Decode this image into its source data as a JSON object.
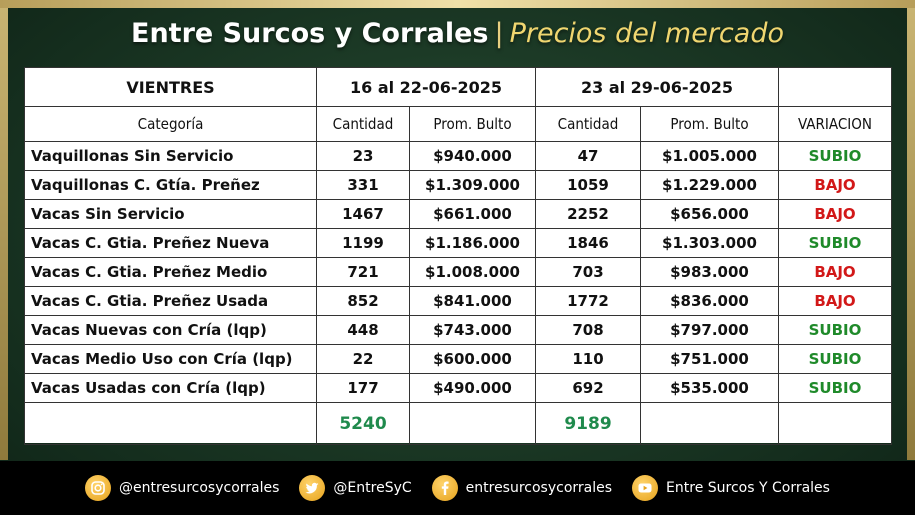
{
  "title": {
    "main": "Entre Surcos y Corrales",
    "separator": "|",
    "sub": "Precios del mercado"
  },
  "table": {
    "section": "VIENTRES",
    "period1": "16 al 22-06-2025",
    "period2": "23 al 29-06-2025",
    "headers": {
      "categoria": "Categoría",
      "cantidad1": "Cantidad",
      "prom1": "Prom. Bulto",
      "cantidad2": "Cantidad",
      "prom2": "Prom. Bulto",
      "variacion": "VARIACION"
    },
    "rows": [
      {
        "categoria": "Vaquillonas Sin Servicio",
        "cant1": "23",
        "prom1": "$940.000",
        "cant2": "47",
        "prom2": "$1.005.000",
        "var": "SUBIO"
      },
      {
        "categoria": "Vaquillonas C. Gtía. Preñez",
        "cant1": "331",
        "prom1": "$1.309.000",
        "cant2": "1059",
        "prom2": "$1.229.000",
        "var": "BAJO"
      },
      {
        "categoria": "Vacas Sin Servicio",
        "cant1": "1467",
        "prom1": "$661.000",
        "cant2": "2252",
        "prom2": "$656.000",
        "var": "BAJO"
      },
      {
        "categoria": "Vacas C. Gtia. Preñez Nueva",
        "cant1": "1199",
        "prom1": "$1.186.000",
        "cant2": "1846",
        "prom2": "$1.303.000",
        "var": "SUBIO"
      },
      {
        "categoria": "Vacas C. Gtia. Preñez Medio",
        "cant1": "721",
        "prom1": "$1.008.000",
        "cant2": "703",
        "prom2": "$983.000",
        "var": "BAJO"
      },
      {
        "categoria": "Vacas C. Gtia. Preñez Usada",
        "cant1": "852",
        "prom1": "$841.000",
        "cant2": "1772",
        "prom2": "$836.000",
        "var": "BAJO"
      },
      {
        "categoria": "Vacas Nuevas con Cría (lqp)",
        "cant1": "448",
        "prom1": "$743.000",
        "cant2": "708",
        "prom2": "$797.000",
        "var": "SUBIO"
      },
      {
        "categoria": "Vacas Medio Uso con Cría (lqp)",
        "cant1": "22",
        "prom1": "$600.000",
        "cant2": "110",
        "prom2": "$751.000",
        "var": "SUBIO"
      },
      {
        "categoria": "Vacas Usadas con Cría (lqp)",
        "cant1": "177",
        "prom1": "$490.000",
        "cant2": "692",
        "prom2": "$535.000",
        "var": "SUBIO"
      }
    ],
    "total1": "5240",
    "total2": "9189",
    "colors": {
      "up": "#1f8a2a",
      "down": "#d21818",
      "total": "#1f8a4c"
    }
  },
  "footer": {
    "instagram": {
      "icon": "instagram-icon",
      "text": "@entresurcosycorrales"
    },
    "twitter": {
      "icon": "twitter-icon",
      "text": "@EntreSyC"
    },
    "facebook": {
      "icon": "facebook-icon",
      "text": "entresurcosycorrales"
    },
    "youtube": {
      "icon": "youtube-icon",
      "text": "Entre Surcos Y Corrales"
    }
  }
}
